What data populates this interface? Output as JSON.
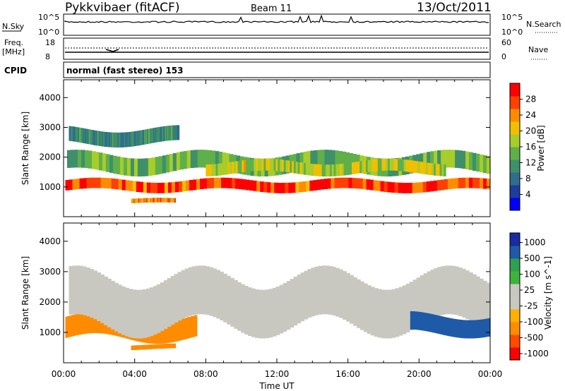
{
  "header": {
    "radar": "Pykkvibaer (fitACF)",
    "beam": "Beam 11",
    "date": "13/Oct/2011"
  },
  "nsky_panel": {
    "left_label": "N.Sky",
    "right_label": "N.Search",
    "left_ticks": [
      "10^5",
      "10^0"
    ],
    "right_ticks": [
      "10^5",
      "10^0"
    ]
  },
  "freq_panel": {
    "left_label_1": "Freq.",
    "left_label_2": "[MHz]",
    "right_label": "Nave",
    "left_ticks": [
      "18",
      "8"
    ],
    "right_ticks": [
      "60",
      "0"
    ]
  },
  "cpid_panel": {
    "label": "CPID",
    "text": "normal (fast stereo) 153"
  },
  "colors": {
    "panel_border": "#000000",
    "power_scale": [
      "#0000ff",
      "#1e3c9c",
      "#2f6e8a",
      "#3f8f6a",
      "#5fb04a",
      "#a8cc2a",
      "#f0c000",
      "#ff8c00",
      "#ff4000",
      "#ff0000"
    ],
    "velocity_scale": [
      "#ff0000",
      "#ff4a00",
      "#ff8c00",
      "#ffb000",
      "#c8c8c0",
      "#c8c8c0",
      "#3cb43c",
      "#2ea050",
      "#1e5aa8",
      "#1a2aa0"
    ]
  },
  "chart_data": [
    {
      "type": "heatmap",
      "name": "power",
      "ylabel": "Slant Range [km]",
      "yticks": [
        "1000",
        "2000",
        "3000",
        "4000"
      ],
      "ylim": [
        0,
        4600
      ],
      "xticks": [
        "00:00",
        "04:00",
        "08:00",
        "12:00",
        "16:00",
        "20:00",
        "00:00"
      ],
      "xlim_hours": [
        0,
        24
      ],
      "colorbar_label": "Power [dB]",
      "colorbar_ticks": [
        "4",
        "8",
        "12",
        "16",
        "20",
        "24",
        "28"
      ],
      "colorbar_range": [
        0,
        32
      ],
      "features": [
        {
          "t_start": 0.1,
          "t_end": 24.0,
          "range_center": 1050,
          "range_width": 350,
          "value": 28
        },
        {
          "t_start": 0.2,
          "t_end": 24.0,
          "range_center": 1800,
          "range_width": 600,
          "value": 14
        },
        {
          "t_start": 0.3,
          "t_end": 6.5,
          "range_center": 2700,
          "range_width": 500,
          "value": 10
        },
        {
          "t_start": 3.8,
          "t_end": 6.3,
          "range_center": 520,
          "range_width": 150,
          "value": 24
        },
        {
          "t_start": 8.0,
          "t_end": 21.5,
          "range_center": 1650,
          "range_width": 400,
          "value": 18
        }
      ]
    },
    {
      "type": "heatmap",
      "name": "velocity",
      "ylabel": "Slant Range [km]",
      "yticks": [
        "1000",
        "2000",
        "3000",
        "4000"
      ],
      "ylim": [
        0,
        4600
      ],
      "xticks": [
        "00:00",
        "04:00",
        "08:00",
        "12:00",
        "16:00",
        "20:00",
        "00:00"
      ],
      "xlim_hours": [
        0,
        24
      ],
      "xlabel": "Time UT",
      "colorbar_label": "Velocity [m s^-1]",
      "colorbar_ticks": [
        "1000",
        "500",
        "100",
        "25",
        "-25",
        "-100",
        "-500",
        "-1000"
      ],
      "colorbar_range": [
        -1200,
        1200
      ],
      "features": [
        {
          "t_start": 0.1,
          "t_end": 7.5,
          "range_center": 1150,
          "range_width": 700,
          "value": -200
        },
        {
          "t_start": 0.3,
          "t_end": 24.0,
          "range_center": 2000,
          "range_width": 1600,
          "value": 0
        },
        {
          "t_start": 3.8,
          "t_end": 6.3,
          "range_center": 520,
          "range_width": 150,
          "value": -150
        },
        {
          "t_start": 19.5,
          "t_end": 24.0,
          "range_center": 1250,
          "range_width": 600,
          "value": 800
        }
      ]
    }
  ]
}
